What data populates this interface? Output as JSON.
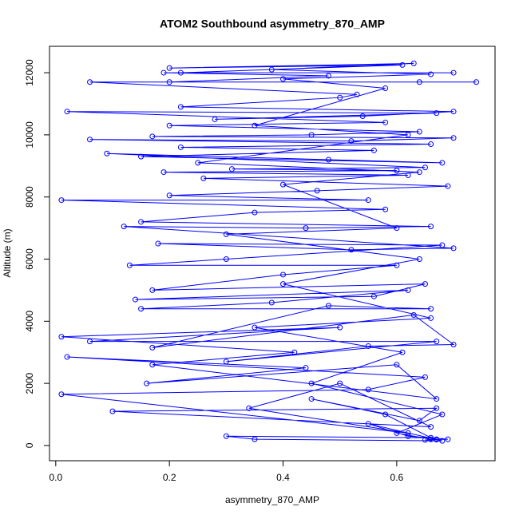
{
  "chart_data": {
    "type": "line",
    "markers": true,
    "title": "ATOM2 Southbound asymmetry_870_AMP",
    "x_label": "asymmetry_870_AMP",
    "y_label": "Altitude (m)",
    "color": "#0000ff",
    "xlim": [
      -0.011,
      0.773
    ],
    "ylim": [
      -490,
      12850
    ],
    "xticks": [
      {
        "value": 0,
        "label": "0.0"
      },
      0.2,
      0.4,
      0.6
    ],
    "yticks": [
      0,
      2000,
      4000,
      6000,
      8000,
      10000,
      12000
    ],
    "x": [
      0.67,
      0.65,
      0.69,
      0.62,
      0.55,
      0.68,
      0.35,
      0.3,
      0.66,
      0.58,
      0.45,
      0.64,
      0.67,
      0.1,
      0.66,
      0.5,
      0.34,
      0.62,
      0.01,
      0.55,
      0.65,
      0.02,
      0.44,
      0.16,
      0.6,
      0.67,
      0.17,
      0.42,
      0.01,
      0.5,
      0.06,
      0.67,
      0.3,
      0.55,
      0.7,
      0.63,
      0.17,
      0.48,
      0.66,
      0.15,
      0.38,
      0.62,
      0.14,
      0.56,
      0.65,
      0.17,
      0.4,
      0.6,
      0.13,
      0.3,
      0.68,
      0.18,
      0.52,
      0.7,
      0.12,
      0.44,
      0.66,
      0.15,
      0.35,
      0.58,
      0.01,
      0.55,
      0.2,
      0.46,
      0.69,
      0.26,
      0.62,
      0.19,
      0.6,
      0.31,
      0.65,
      0.09,
      0.48,
      0.68,
      0.15,
      0.56,
      0.22,
      0.66,
      0.06,
      0.52,
      0.7,
      0.17,
      0.45,
      0.64,
      0.2,
      0.58,
      0.02,
      0.67,
      0.28,
      0.54,
      0.7,
      0.22,
      0.5,
      0.53,
      0.06,
      0.64,
      0.74,
      0.2,
      0.48,
      0.19,
      0.7,
      0.22,
      0.61,
      0.2,
      0.63,
      0.38,
      0.66,
      0.4,
      0.58,
      0.35,
      0.62,
      0.25,
      0.64,
      0.4,
      0.6,
      0.3,
      0.64,
      0.4,
      0.66,
      0.35,
      0.61,
      0.45,
      0.68,
      0.6,
      0.66,
      0.67
    ],
    "values": [
      200,
      180,
      200,
      300,
      700,
      150,
      200,
      300,
      250,
      1000,
      1500,
      800,
      1200,
      1100,
      600,
      2000,
      1200,
      400,
      1650,
      1800,
      2200,
      2850,
      2500,
      2000,
      2600,
      1500,
      2600,
      3000,
      3500,
      3800,
      3350,
      3350,
      2700,
      3200,
      3250,
      4200,
      3150,
      4500,
      4400,
      4400,
      4600,
      5000,
      4700,
      4800,
      5200,
      5000,
      5500,
      5800,
      5800,
      6000,
      6450,
      6500,
      6300,
      6350,
      7050,
      7000,
      7050,
      7200,
      7500,
      7600,
      7900,
      7900,
      8050,
      8200,
      8350,
      8600,
      8700,
      8800,
      8850,
      8900,
      8950,
      9400,
      9200,
      9100,
      9300,
      9500,
      9600,
      9700,
      9850,
      9800,
      9900,
      9950,
      10000,
      10100,
      10300,
      10400,
      10750,
      10700,
      10500,
      10600,
      10750,
      10900,
      11200,
      11300,
      11700,
      11700,
      11700,
      11700,
      11900,
      12000,
      12000,
      12000,
      12250,
      12150,
      12300,
      12100,
      11950,
      11800,
      11500,
      10300,
      10000,
      9100,
      8800,
      8400,
      7000,
      6800,
      6000,
      5200,
      4100,
      3800,
      3000,
      2000,
      1000,
      400,
      200,
      190
    ]
  }
}
